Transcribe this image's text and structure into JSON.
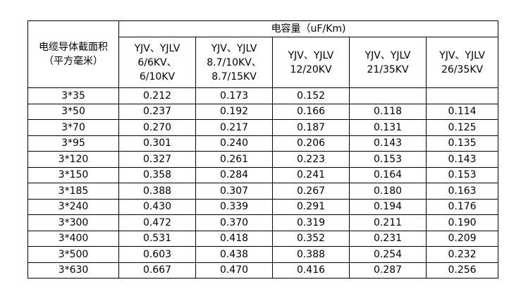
{
  "table": {
    "row_header": "电缆导体截面积\n（平方毫米）",
    "group_header": "电容量（uF/Km)",
    "voltage_headers": [
      "YJV、YJLV\n6/6KV、\n6/10KV",
      "YJV、YJLV\n8.7/10KV、\n8.7/15KV",
      "YJV、YJLV\n12/20KV",
      "YJV、YJLV\n21/35KV",
      "YJV、YJLV\n26/35KV"
    ],
    "rows": [
      {
        "size": "3*35",
        "values": [
          "0.212",
          "0.173",
          "0.152",
          "",
          ""
        ]
      },
      {
        "size": "3*50",
        "values": [
          "0.237",
          "0.192",
          "0.166",
          "0.118",
          "0.114"
        ]
      },
      {
        "size": "3*70",
        "values": [
          "0.270",
          "0.217",
          "0.187",
          "0.131",
          "0.125"
        ]
      },
      {
        "size": "3*95",
        "values": [
          "0.301",
          "0.240",
          "0.206",
          "0.143",
          "0.135"
        ]
      },
      {
        "size": "3*120",
        "values": [
          "0.327",
          "0.261",
          "0.223",
          "0.153",
          "0.143"
        ]
      },
      {
        "size": "3*150",
        "values": [
          "0.358",
          "0.284",
          "0.241",
          "0.164",
          "0.153"
        ]
      },
      {
        "size": "3*185",
        "values": [
          "0.388",
          "0.307",
          "0.267",
          "0.180",
          "0.163"
        ]
      },
      {
        "size": "3*240",
        "values": [
          "0.430",
          "0.339",
          "0.291",
          "0.194",
          "0.176"
        ]
      },
      {
        "size": "3*300",
        "values": [
          "0.472",
          "0.370",
          "0.319",
          "0.211",
          "0.190"
        ]
      },
      {
        "size": "3*400",
        "values": [
          "0.531",
          "0.418",
          "0.352",
          "0.231",
          "0.209"
        ]
      },
      {
        "size": "3*500",
        "values": [
          "0.603",
          "0.438",
          "0.388",
          "0.254",
          "0.232"
        ]
      },
      {
        "size": "3*630",
        "values": [
          "0.667",
          "0.470",
          "0.416",
          "0.287",
          "0.256"
        ]
      }
    ]
  }
}
